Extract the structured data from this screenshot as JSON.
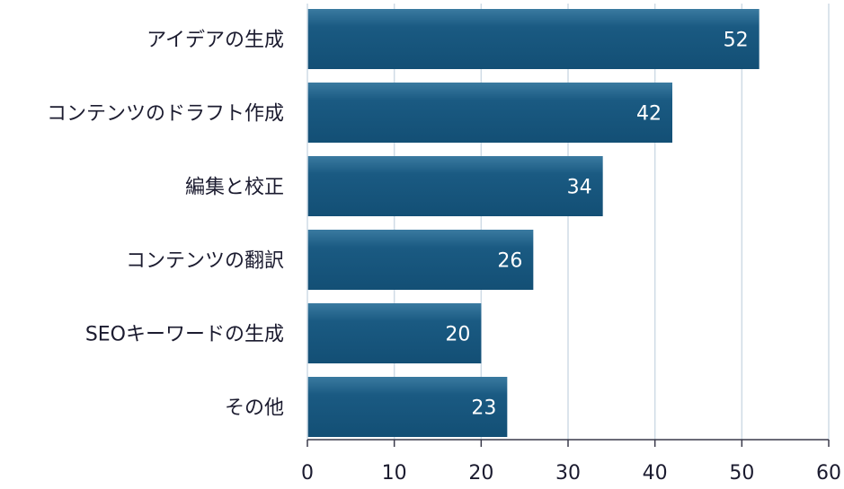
{
  "chart_data": {
    "type": "bar",
    "orientation": "horizontal",
    "categories": [
      "アイデアの生成",
      "コンテンツのドラフト作成",
      "編集と校正",
      "コンテンツの翻訳",
      "SEOキーワードの生成",
      "その他"
    ],
    "values": [
      52,
      42,
      34,
      26,
      20,
      23
    ],
    "xlim": [
      0,
      60
    ],
    "xticks": [
      0,
      10,
      20,
      30,
      40,
      50,
      60
    ],
    "grid": "vertical",
    "data_labels": true,
    "title": "",
    "xlabel": "",
    "ylabel": ""
  },
  "colors": {
    "bar_top": "#3a7aa0",
    "bar_bottom": "#134f75",
    "bar_mid": "#1a5a82",
    "grid": "#cfdbe6",
    "axis": "#3a3a4a",
    "text": "#1b1b2f",
    "value_text": "#ffffff"
  }
}
